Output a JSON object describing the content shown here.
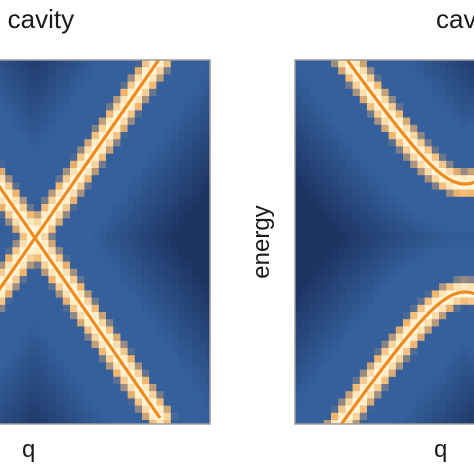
{
  "chart_data": [
    {
      "type": "heatmap",
      "title": "o cavity",
      "xlabel": "q",
      "ylabel": "",
      "grid": false,
      "colors": {
        "background": "#35609c",
        "glow": "#fffae6",
        "mid": "#f2b36b",
        "line": "#ef8a1e",
        "frame": "#9c9c9c"
      },
      "bands": [
        {
          "name": "",
          "x": [
            -1.0,
            0.0,
            1.0
          ],
          "y": [
            1.0,
            0.0,
            1.0
          ]
        },
        {
          "name": "",
          "x": [
            -1.0,
            0.0,
            1.0
          ],
          "y": [
            -1.0,
            0.0,
            -1.0
          ]
        }
      ]
    },
    {
      "type": "heatmap",
      "title": "cav",
      "xlabel": "q",
      "ylabel": "energy",
      "grid": false,
      "colors": {
        "background": "#35609c",
        "glow": "#fffae6",
        "mid": "#f2b36b",
        "line": "#ef8a1e",
        "frame": "#9c9c9c"
      },
      "bands": [
        {
          "name": "",
          "gap": 0.3
        }
      ]
    }
  ]
}
